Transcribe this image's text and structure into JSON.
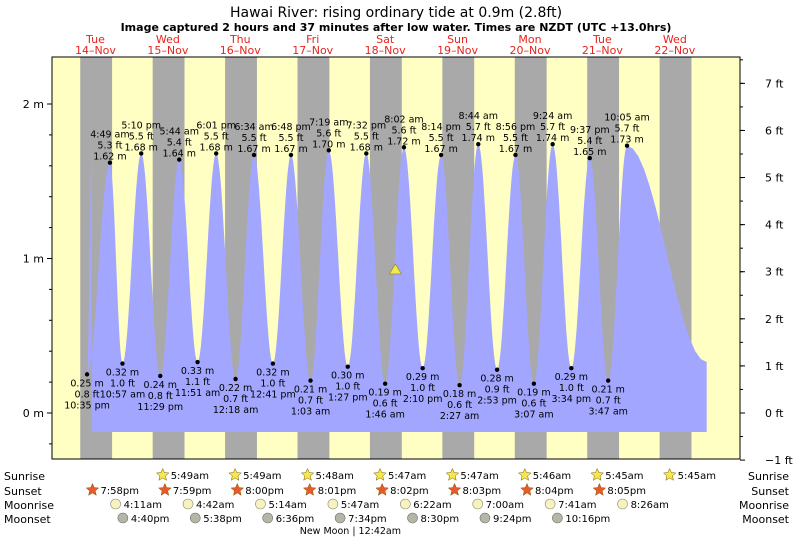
{
  "header": {
    "title": "Hawai River: rising  ordinary tide at 0.9m (2.8ft)",
    "subtitle": "Image captured 2 hours and 37 minutes after low water. Times are NZDT (UTC +13.0hrs)"
  },
  "chart_data": {
    "type": "area",
    "y_left": {
      "unit": "m",
      "range": [
        -0.26,
        2.16
      ],
      "ticks": [
        "2 m",
        "1 m",
        "0 m"
      ],
      "tick_values": [
        2,
        1,
        0
      ]
    },
    "y_right": {
      "unit": "ft",
      "ticks": [
        "7 ft",
        "6 ft",
        "5 ft",
        "4 ft",
        "3 ft",
        "2 ft",
        "1 ft",
        "0 ft",
        "−1 ft"
      ],
      "tick_values": [
        7,
        6,
        5,
        4,
        3,
        2,
        1,
        0,
        -1
      ]
    },
    "days": [
      {
        "dow": "Tue",
        "date": "14–Nov",
        "x": 0
      },
      {
        "dow": "Wed",
        "date": "15–Nov",
        "x": 1
      },
      {
        "dow": "Thu",
        "date": "16–Nov",
        "x": 2
      },
      {
        "dow": "Fri",
        "date": "17–Nov",
        "x": 3
      },
      {
        "dow": "Sat",
        "date": "18–Nov",
        "x": 4
      },
      {
        "dow": "Sun",
        "date": "19–Nov",
        "x": 5
      },
      {
        "dow": "Mon",
        "date": "20–Nov",
        "x": 6
      },
      {
        "dow": "Tue",
        "date": "21–Nov",
        "x": 7
      },
      {
        "dow": "Wed",
        "date": "22–Nov",
        "x": 8
      }
    ],
    "nights": [
      [
        -0.21,
        0.23
      ],
      [
        0.79,
        1.23
      ],
      [
        1.79,
        2.23
      ],
      [
        2.79,
        3.23
      ],
      [
        3.79,
        4.23
      ],
      [
        4.79,
        5.23
      ],
      [
        5.79,
        6.23
      ],
      [
        6.79,
        7.23
      ],
      [
        7.79,
        8.23
      ]
    ],
    "x_range": [
      -0.6,
      8.9
    ],
    "series_range": [
      -0.05,
      8.44
    ],
    "tides": [
      {
        "type": "low",
        "x": -0.116,
        "m": 0.25,
        "ft": "0.8 ft",
        "time": "10:35 pm",
        "m_label": "0.25 m"
      },
      {
        "type": "high",
        "x": 0.2,
        "m": 1.62,
        "ft": "5.3 ft",
        "time": "4:49 am",
        "m_label": "1.62 m"
      },
      {
        "type": "low",
        "x": 0.373,
        "m": 0.32,
        "ft": "1.0 ft",
        "time": "10:57 am",
        "m_label": "0.32 m"
      },
      {
        "type": "high",
        "x": 0.632,
        "m": 1.68,
        "ft": "5.5 ft",
        "time": "5:10 pm",
        "m_label": "1.68 m"
      },
      {
        "type": "low",
        "x": 0.895,
        "m": 0.24,
        "ft": "0.8 ft",
        "time": "11:29 pm",
        "m_label": "0.24 m"
      },
      {
        "type": "high",
        "x": 1.157,
        "m": 1.64,
        "ft": "5.4 ft",
        "time": "5:44 am",
        "m_label": "1.64 m"
      },
      {
        "type": "low",
        "x": 1.41,
        "m": 0.33,
        "ft": "1.1 ft",
        "time": "11:51 am",
        "m_label": "0.33 m"
      },
      {
        "type": "high",
        "x": 1.667,
        "m": 1.68,
        "ft": "5.5 ft",
        "time": "6:01 pm",
        "m_label": "1.68 m"
      },
      {
        "type": "low",
        "x": 1.935,
        "m": 0.22,
        "ft": "0.7 ft",
        "time": "12:18 am",
        "m_label": "0.22 m"
      },
      {
        "type": "high",
        "x": 2.19,
        "m": 1.67,
        "ft": "5.5 ft",
        "time": "6:34 am",
        "m_label": "1.67 m"
      },
      {
        "type": "low",
        "x": 2.45,
        "m": 0.32,
        "ft": "1.0 ft",
        "time": "12:41 pm",
        "m_label": "0.32 m"
      },
      {
        "type": "high",
        "x": 2.7,
        "m": 1.67,
        "ft": "5.5 ft",
        "time": "6:48 pm",
        "m_label": "1.67 m"
      },
      {
        "type": "low",
        "x": 2.97,
        "m": 0.21,
        "ft": "0.7 ft",
        "time": "1:03 am",
        "m_label": "0.21 m"
      },
      {
        "type": "high",
        "x": 3.222,
        "m": 1.7,
        "ft": "5.6 ft",
        "time": "7:19 am",
        "m_label": "1.70 m"
      },
      {
        "type": "low",
        "x": 3.484,
        "m": 0.3,
        "ft": "1.0 ft",
        "time": "1:27 pm",
        "m_label": "0.30 m"
      },
      {
        "type": "high",
        "x": 3.74,
        "m": 1.68,
        "ft": "5.5 ft",
        "time": "7:32 pm",
        "m_label": "1.68 m"
      },
      {
        "type": "low",
        "x": 4.0,
        "m": 0.19,
        "ft": "0.6 ft",
        "time": "1:46 am",
        "m_label": "0.19 m"
      },
      {
        "type": "high",
        "x": 4.26,
        "m": 1.72,
        "ft": "5.6 ft",
        "time": "8:02 am",
        "m_label": "1.72 m"
      },
      {
        "type": "low",
        "x": 4.518,
        "m": 0.29,
        "ft": "1.0 ft",
        "time": "2:10 pm",
        "m_label": "0.29 m"
      },
      {
        "type": "high",
        "x": 4.773,
        "m": 1.67,
        "ft": "5.5 ft",
        "time": "8:14 pm",
        "m_label": "1.67 m"
      },
      {
        "type": "low",
        "x": 5.028,
        "m": 0.18,
        "ft": "0.6 ft",
        "time": "2:27 am",
        "m_label": "0.18 m"
      },
      {
        "type": "high",
        "x": 5.286,
        "m": 1.74,
        "ft": "5.7 ft",
        "time": "8:44 am",
        "m_label": "1.74 m"
      },
      {
        "type": "low",
        "x": 5.546,
        "m": 0.28,
        "ft": "0.9 ft",
        "time": "2:53 pm",
        "m_label": "0.28 m"
      },
      {
        "type": "high",
        "x": 5.8,
        "m": 1.67,
        "ft": "5.5 ft",
        "time": "8:56 pm",
        "m_label": "1.67 m"
      },
      {
        "type": "low",
        "x": 6.054,
        "m": 0.19,
        "ft": "0.6 ft",
        "time": "3:07 am",
        "m_label": "0.19 m"
      },
      {
        "type": "high",
        "x": 6.313,
        "m": 1.74,
        "ft": "5.7 ft",
        "time": "9:24 am",
        "m_label": "1.74 m"
      },
      {
        "type": "low",
        "x": 6.571,
        "m": 0.29,
        "ft": "1.0 ft",
        "time": "3:34 pm",
        "m_label": "0.29 m"
      },
      {
        "type": "high",
        "x": 6.826,
        "m": 1.65,
        "ft": "5.4 ft",
        "time": "9:37 pm",
        "m_label": "1.65 m"
      },
      {
        "type": "low",
        "x": 7.08,
        "m": 0.21,
        "ft": "0.7 ft",
        "time": "3:47 am",
        "m_label": "0.21 m"
      },
      {
        "type": "high",
        "x": 7.34,
        "m": 1.73,
        "ft": "5.7 ft",
        "time": "10:05 am",
        "m_label": "1.73 m"
      }
    ],
    "current": {
      "x": 4.142,
      "m": 0.9
    },
    "start_level": 1.7,
    "end_level": 0.33
  },
  "events": {
    "labels": [
      "Sunrise",
      "Sunset",
      "Moonrise",
      "Moonset"
    ],
    "sunrise": [
      {
        "x": 0.97,
        "time": "5:49am"
      },
      {
        "x": 1.97,
        "time": "5:49am"
      },
      {
        "x": 2.97,
        "time": "5:48am"
      },
      {
        "x": 3.97,
        "time": "5:47am"
      },
      {
        "x": 4.97,
        "time": "5:47am"
      },
      {
        "x": 5.97,
        "time": "5:46am"
      },
      {
        "x": 6.97,
        "time": "5:45am"
      },
      {
        "x": 7.97,
        "time": "5:45am"
      }
    ],
    "sunset": [
      {
        "x": 0.0,
        "time": "7:58pm"
      },
      {
        "x": 1.0,
        "time": "7:59pm"
      },
      {
        "x": 2.0,
        "time": "8:00pm"
      },
      {
        "x": 3.0,
        "time": "8:01pm"
      },
      {
        "x": 4.0,
        "time": "8:02pm"
      },
      {
        "x": 5.0,
        "time": "8:03pm"
      },
      {
        "x": 6.0,
        "time": "8:04pm"
      },
      {
        "x": 7.0,
        "time": "8:05pm"
      }
    ],
    "moonrise": [
      {
        "x": 0.32,
        "time": "4:11am"
      },
      {
        "x": 1.32,
        "time": "4:42am"
      },
      {
        "x": 2.32,
        "time": "5:14am"
      },
      {
        "x": 3.32,
        "time": "5:47am"
      },
      {
        "x": 4.32,
        "time": "6:22am"
      },
      {
        "x": 5.32,
        "time": "7:00am"
      },
      {
        "x": 6.32,
        "time": "7:41am"
      },
      {
        "x": 7.32,
        "time": "8:26am"
      }
    ],
    "moonset": [
      {
        "x": 0.42,
        "time": "4:40pm"
      },
      {
        "x": 1.42,
        "time": "5:38pm"
      },
      {
        "x": 2.42,
        "time": "6:36pm"
      },
      {
        "x": 3.42,
        "time": "7:34pm"
      },
      {
        "x": 4.42,
        "time": "8:30pm"
      },
      {
        "x": 5.42,
        "time": "9:24pm"
      },
      {
        "x": 6.42,
        "time": "10:16pm"
      }
    ],
    "moon_phase": {
      "x": 3.52,
      "label": "New Moon | 12:42am"
    }
  },
  "colors": {
    "day": "#ffffc4",
    "night": "#a9a9a9",
    "water": "#a2a6ff",
    "day_label": "#e8231c",
    "marker": "#f5e94a",
    "sun": "#f5e94a",
    "sunset": "#e85a2c",
    "moon": "#f7f3c0",
    "moonset": "#b5b5a8"
  }
}
